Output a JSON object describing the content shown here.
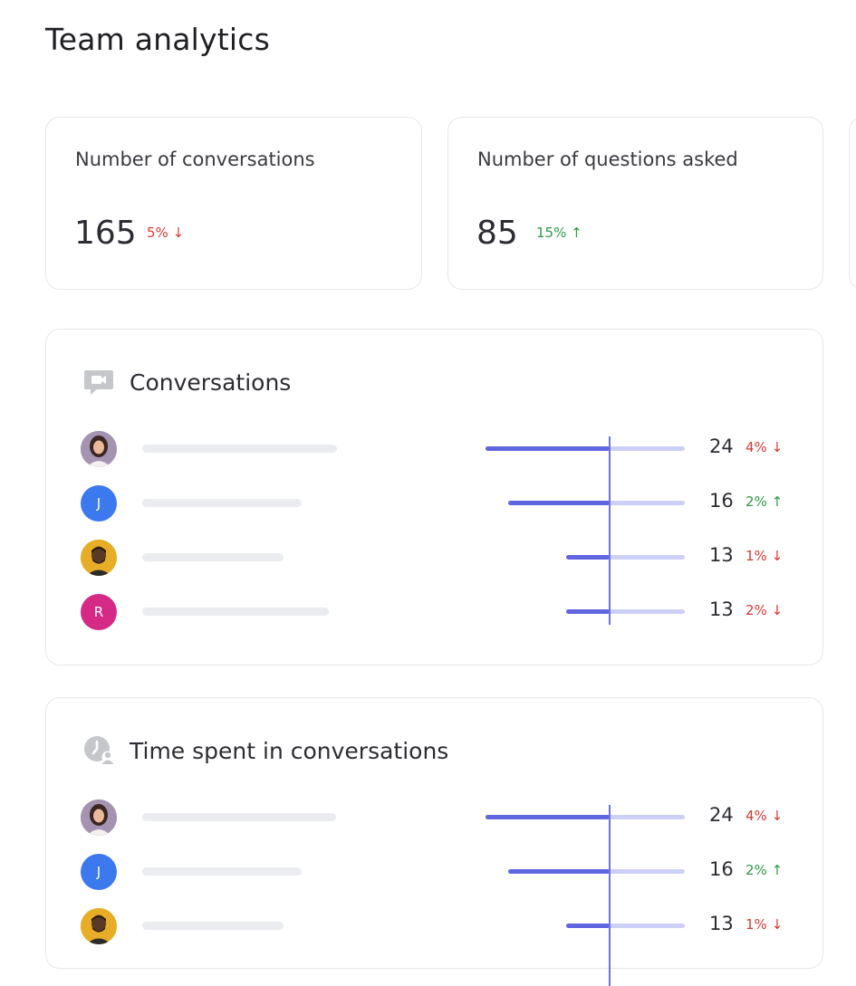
{
  "page": {
    "title": "Team analytics"
  },
  "stats": [
    {
      "label": "Number of conversations",
      "value": "165",
      "delta": "5%",
      "direction": "down",
      "arrow": "↓"
    },
    {
      "label": "Number of questions asked",
      "value": "85",
      "delta": "15%",
      "direction": "up",
      "arrow": "↑"
    }
  ],
  "colors": {
    "down": "#d83a34",
    "up": "#2f9a47",
    "bar": "#6165e0",
    "bar_track": "#cdd0f6"
  },
  "panels": [
    {
      "title": "Conversations",
      "icon": "video-chat-icon",
      "rows": [
        {
          "avatar": "photo",
          "value": 24,
          "delta": "4%",
          "direction": "down",
          "arrow": "↓"
        },
        {
          "avatar": "J",
          "value": 16,
          "delta": "2%",
          "direction": "up",
          "arrow": "↑"
        },
        {
          "avatar": "photo",
          "value": 13,
          "delta": "1%",
          "direction": "down",
          "arrow": "↓"
        },
        {
          "avatar": "R",
          "value": 13,
          "delta": "2%",
          "direction": "down",
          "arrow": "↓"
        }
      ]
    },
    {
      "title": "Time spent in conversations",
      "icon": "clock-user-icon",
      "rows": [
        {
          "avatar": "photo",
          "value": 24,
          "delta": "4%",
          "direction": "down",
          "arrow": "↓"
        },
        {
          "avatar": "J",
          "value": 16,
          "delta": "2%",
          "direction": "up",
          "arrow": "↑"
        },
        {
          "avatar": "photo",
          "value": 13,
          "delta": "1%",
          "direction": "down",
          "arrow": "↓"
        }
      ]
    }
  ]
}
